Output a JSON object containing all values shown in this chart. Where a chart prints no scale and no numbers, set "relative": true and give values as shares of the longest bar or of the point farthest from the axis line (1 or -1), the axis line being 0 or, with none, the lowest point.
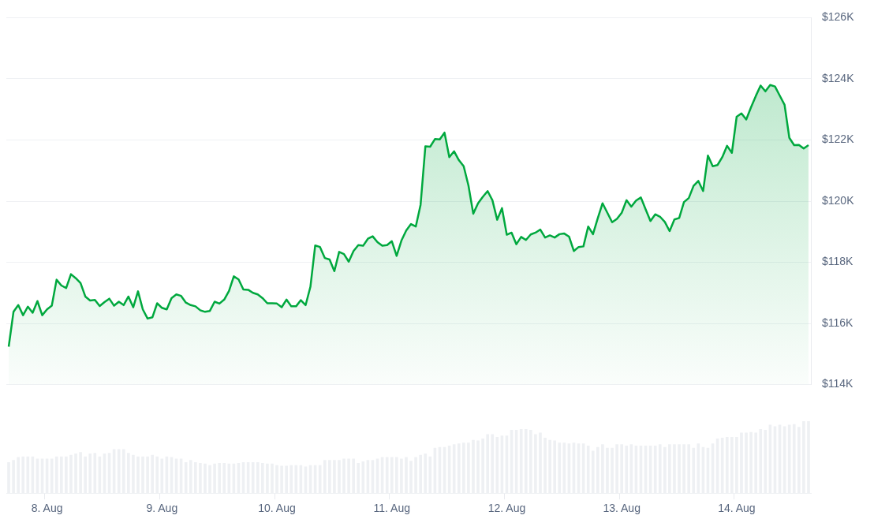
{
  "chart_data": [
    {
      "type": "area",
      "color": "#00a83e",
      "grid": "y",
      "tick_labels": "y",
      "ylim": [
        114,
        126
      ],
      "yticks": [
        {
          "value": 114,
          "label": "$114K"
        },
        {
          "value": 116,
          "label": "$116K"
        },
        {
          "value": 118,
          "label": "$118K"
        },
        {
          "value": 120,
          "label": "$120K"
        },
        {
          "value": 122,
          "label": "$122K"
        },
        {
          "value": 124,
          "label": "$124K"
        },
        {
          "value": 126,
          "label": "$126K"
        }
      ],
      "categories": [
        null,
        null,
        null,
        null,
        null,
        null,
        null,
        null,
        null,
        null,
        null,
        null,
        null,
        null,
        null,
        null,
        null,
        null,
        null,
        null,
        null,
        null,
        null,
        null,
        null,
        null,
        null,
        null,
        null,
        null,
        null,
        null,
        null,
        null,
        null,
        null,
        null,
        null,
        null,
        null,
        null,
        null,
        null,
        null,
        null,
        null,
        null,
        null,
        null,
        null,
        null,
        null,
        null,
        null,
        null,
        null,
        null,
        null,
        null,
        null,
        null,
        null,
        null,
        null,
        null,
        null,
        null,
        null,
        null,
        null,
        null,
        null,
        null,
        null,
        null,
        null,
        null,
        null,
        null,
        null,
        null,
        null,
        null,
        null,
        null,
        null,
        null,
        null,
        null,
        null,
        null,
        null,
        null,
        null,
        null,
        null,
        null,
        null,
        null,
        null,
        null,
        null,
        null,
        null,
        null,
        null,
        null,
        null,
        null,
        null,
        null,
        null,
        null,
        null,
        null,
        null,
        null,
        null,
        null,
        null,
        null,
        null,
        null,
        null,
        null,
        null,
        null,
        null,
        null,
        null,
        null,
        null,
        null,
        null,
        null,
        null,
        null,
        null,
        null,
        null,
        null,
        null,
        null,
        null,
        null,
        null,
        null,
        null,
        null,
        null,
        null,
        null,
        null,
        null,
        null,
        null,
        null,
        null,
        null,
        null,
        null,
        null,
        null,
        null,
        null,
        null,
        null,
        null
      ],
      "values": [
        115.24,
        116.38,
        116.6,
        116.27,
        116.55,
        116.35,
        116.73,
        116.27,
        116.46,
        116.58,
        117.43,
        117.24,
        117.16,
        117.61,
        117.48,
        117.32,
        116.88,
        116.75,
        116.77,
        116.57,
        116.7,
        116.81,
        116.58,
        116.71,
        116.6,
        116.88,
        116.53,
        117.05,
        116.46,
        116.16,
        116.2,
        116.66,
        116.51,
        116.46,
        116.83,
        116.95,
        116.9,
        116.68,
        116.6,
        116.56,
        116.43,
        116.38,
        116.41,
        116.71,
        116.65,
        116.78,
        117.06,
        117.54,
        117.44,
        117.11,
        117.1,
        117.0,
        116.95,
        116.83,
        116.66,
        116.66,
        116.65,
        116.53,
        116.78,
        116.56,
        116.56,
        116.76,
        116.6,
        117.2,
        118.55,
        118.5,
        118.14,
        118.09,
        117.71,
        118.34,
        118.27,
        118.02,
        118.37,
        118.56,
        118.54,
        118.77,
        118.85,
        118.66,
        118.54,
        118.56,
        118.69,
        118.21,
        118.71,
        119.04,
        119.25,
        119.17,
        119.88,
        121.79,
        121.78,
        122.03,
        122.02,
        122.24,
        121.44,
        121.63,
        121.34,
        121.14,
        120.51,
        119.59,
        119.93,
        120.14,
        120.33,
        120.03,
        119.39,
        119.77,
        118.9,
        118.97,
        118.59,
        118.83,
        118.73,
        118.91,
        118.97,
        119.07,
        118.81,
        118.88,
        118.81,
        118.92,
        118.94,
        118.84,
        118.37,
        118.5,
        118.52,
        119.17,
        118.92,
        119.44,
        119.93,
        119.62,
        119.31,
        119.42,
        119.62,
        120.03,
        119.82,
        120.02,
        120.12,
        119.73,
        119.35,
        119.57,
        119.49,
        119.32,
        119.02,
        119.4,
        119.45,
        119.97,
        120.1,
        120.5,
        120.66,
        120.33,
        121.49,
        121.14,
        121.18,
        121.44,
        121.81,
        121.58,
        122.76,
        122.87,
        122.67,
        123.07,
        123.44,
        123.78,
        123.59,
        123.8,
        123.75,
        123.45,
        123.15,
        122.07,
        121.83,
        121.84,
        121.72,
        121.83
      ]
    },
    {
      "type": "bar",
      "color": "#eef0f3",
      "relative": true,
      "tick_labels": "x",
      "categories": [
        null,
        null,
        null,
        null,
        null,
        null,
        null,
        null,
        "8. Aug",
        null,
        null,
        null,
        null,
        null,
        null,
        null,
        null,
        null,
        null,
        null,
        null,
        null,
        null,
        null,
        null,
        null,
        null,
        null,
        null,
        null,
        null,
        null,
        "9. Aug",
        null,
        null,
        null,
        null,
        null,
        null,
        null,
        null,
        null,
        null,
        null,
        null,
        null,
        null,
        null,
        null,
        null,
        null,
        null,
        null,
        null,
        null,
        null,
        "10. Aug",
        null,
        null,
        null,
        null,
        null,
        null,
        null,
        null,
        null,
        null,
        null,
        null,
        null,
        null,
        null,
        null,
        null,
        null,
        null,
        null,
        null,
        null,
        null,
        "11. Aug",
        null,
        null,
        null,
        null,
        null,
        null,
        null,
        null,
        null,
        null,
        null,
        null,
        null,
        null,
        null,
        null,
        null,
        null,
        null,
        null,
        null,
        null,
        null,
        "12. Aug",
        null,
        null,
        null,
        null,
        null,
        null,
        null,
        null,
        null,
        null,
        null,
        null,
        null,
        null,
        null,
        null,
        null,
        null,
        null,
        null,
        null,
        null,
        null,
        "13. Aug",
        null,
        null,
        null,
        null,
        null,
        null,
        null,
        null,
        null,
        null,
        null,
        null,
        null,
        null,
        null,
        null,
        null,
        null,
        null,
        null,
        null,
        null,
        null,
        "14. Aug",
        null,
        null,
        null,
        null,
        null,
        null,
        null,
        null,
        null,
        null,
        null,
        null,
        null,
        null,
        null
      ],
      "values": [
        0.43,
        0.46,
        0.5,
        0.51,
        0.51,
        0.51,
        0.48,
        0.48,
        0.48,
        0.48,
        0.51,
        0.51,
        0.51,
        0.53,
        0.55,
        0.57,
        0.51,
        0.55,
        0.56,
        0.51,
        0.55,
        0.56,
        0.61,
        0.61,
        0.61,
        0.56,
        0.53,
        0.51,
        0.51,
        0.51,
        0.53,
        0.51,
        0.48,
        0.51,
        0.5,
        0.48,
        0.48,
        0.43,
        0.46,
        0.43,
        0.42,
        0.41,
        0.39,
        0.41,
        0.42,
        0.42,
        0.41,
        0.41,
        0.42,
        0.43,
        0.43,
        0.43,
        0.43,
        0.42,
        0.41,
        0.41,
        0.39,
        0.38,
        0.38,
        0.39,
        0.39,
        0.39,
        0.37,
        0.39,
        0.39,
        0.39,
        0.46,
        0.46,
        0.46,
        0.46,
        0.48,
        0.48,
        0.48,
        0.42,
        0.44,
        0.46,
        0.46,
        0.48,
        0.5,
        0.5,
        0.5,
        0.5,
        0.48,
        0.5,
        0.45,
        0.5,
        0.53,
        0.55,
        0.51,
        0.63,
        0.64,
        0.64,
        0.66,
        0.68,
        0.69,
        0.7,
        0.7,
        0.74,
        0.73,
        0.76,
        0.82,
        0.82,
        0.78,
        0.8,
        0.8,
        0.88,
        0.88,
        0.89,
        0.89,
        0.88,
        0.82,
        0.84,
        0.77,
        0.74,
        0.73,
        0.7,
        0.7,
        0.69,
        0.7,
        0.69,
        0.69,
        0.66,
        0.59,
        0.64,
        0.68,
        0.63,
        0.63,
        0.68,
        0.68,
        0.66,
        0.68,
        0.66,
        0.66,
        0.66,
        0.66,
        0.66,
        0.68,
        0.64,
        0.68,
        0.68,
        0.68,
        0.68,
        0.68,
        0.63,
        0.69,
        0.64,
        0.63,
        0.69,
        0.76,
        0.77,
        0.78,
        0.78,
        0.78,
        0.84,
        0.84,
        0.85,
        0.84,
        0.89,
        0.88,
        0.95,
        0.93,
        0.95,
        0.93,
        0.95,
        0.96,
        0.92,
        1,
        1
      ]
    }
  ]
}
